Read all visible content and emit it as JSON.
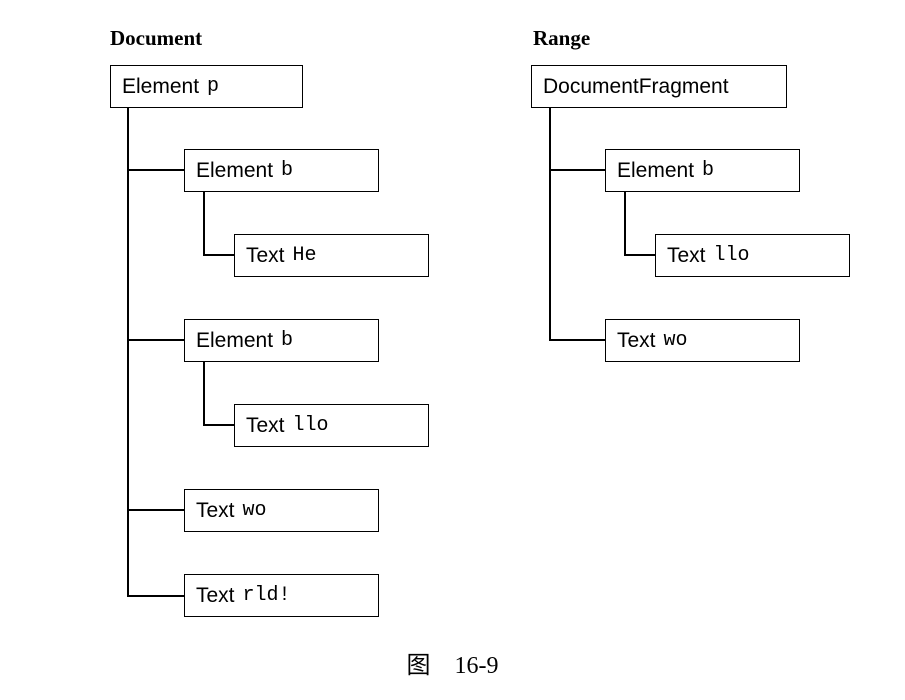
{
  "document_tree": {
    "heading": "Document",
    "root": {
      "kind": "Element",
      "value": "p"
    },
    "children": [
      {
        "kind": "Element",
        "value": "b",
        "child": {
          "kind": "Text",
          "value": "He"
        }
      },
      {
        "kind": "Element",
        "value": "b",
        "child": {
          "kind": "Text",
          "value": "llo"
        }
      },
      {
        "kind": "Text",
        "value": "wo"
      },
      {
        "kind": "Text",
        "value": "rld!"
      }
    ]
  },
  "range_tree": {
    "heading": "Range",
    "root": {
      "kind": "DocumentFragment",
      "value": ""
    },
    "children": [
      {
        "kind": "Element",
        "value": "b",
        "child": {
          "kind": "Text",
          "value": "llo"
        }
      },
      {
        "kind": "Text",
        "value": "wo"
      }
    ]
  },
  "caption": "图    16-9"
}
